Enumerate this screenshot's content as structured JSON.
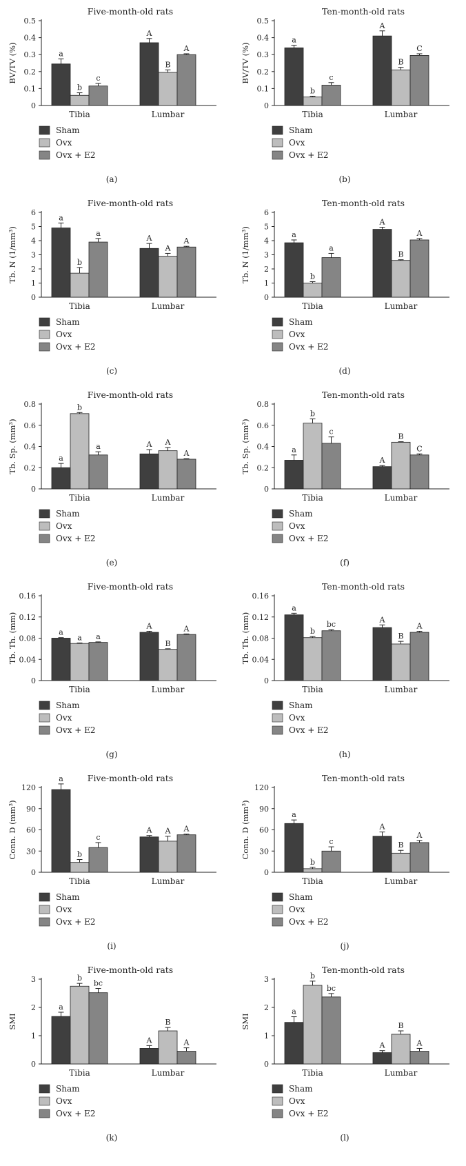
{
  "figure": {
    "groups": [
      "Tibia",
      "Lumbar"
    ],
    "series_names": [
      "Sham",
      "Ovx",
      "Ovx + E2"
    ],
    "colors": {
      "Sham": "#3f3f3f",
      "Ovx": "#bdbdbd",
      "Ovx + E2": "#858585"
    }
  },
  "chart_data": [
    {
      "type": "bar",
      "label": "(a)",
      "title": "Five-month-old rats",
      "ylabel": "BV/TV (%)",
      "ylim": [
        0,
        0.5
      ],
      "yticks": [
        "0",
        "0.1",
        "0.2",
        "0.3",
        "0.4",
        "0.5"
      ],
      "categories": [
        "Tibia",
        "Lumbar"
      ],
      "series": [
        {
          "name": "Sham",
          "values": [
            0.245,
            0.37
          ],
          "errors": [
            0.03,
            0.025
          ],
          "letters": [
            "a",
            "A"
          ]
        },
        {
          "name": "Ovx",
          "values": [
            0.06,
            0.195
          ],
          "errors": [
            0.015,
            0.015
          ],
          "letters": [
            "b",
            "B"
          ]
        },
        {
          "name": "Ovx + E2",
          "values": [
            0.115,
            0.3
          ],
          "errors": [
            0.015,
            0.005
          ],
          "letters": [
            "c",
            "A"
          ]
        }
      ]
    },
    {
      "type": "bar",
      "label": "(b)",
      "title": "Ten-month-old rats",
      "ylabel": "BV/TV (%)",
      "ylim": [
        0,
        0.5
      ],
      "yticks": [
        "0",
        "0.1",
        "0.2",
        "0.3",
        "0.4",
        "0.5"
      ],
      "categories": [
        "Tibia",
        "Lumbar"
      ],
      "series": [
        {
          "name": "Sham",
          "values": [
            0.34,
            0.41
          ],
          "errors": [
            0.015,
            0.03
          ],
          "letters": [
            "a",
            "A"
          ]
        },
        {
          "name": "Ovx",
          "values": [
            0.05,
            0.21
          ],
          "errors": [
            0.005,
            0.015
          ],
          "letters": [
            "b",
            "B"
          ]
        },
        {
          "name": "Ovx + E2",
          "values": [
            0.12,
            0.295
          ],
          "errors": [
            0.015,
            0.01
          ],
          "letters": [
            "c",
            "C"
          ]
        }
      ]
    },
    {
      "type": "bar",
      "label": "(c)",
      "title": "Five-month-old rats",
      "ylabel": "Tb. N (1/mm³)",
      "ylim": [
        0,
        6
      ],
      "yticks": [
        "0",
        "1",
        "2",
        "3",
        "4",
        "5",
        "6"
      ],
      "categories": [
        "Tibia",
        "Lumbar"
      ],
      "series": [
        {
          "name": "Sham",
          "values": [
            4.9,
            3.45
          ],
          "errors": [
            0.35,
            0.35
          ],
          "letters": [
            "a",
            "A"
          ]
        },
        {
          "name": "Ovx",
          "values": [
            1.7,
            2.9
          ],
          "errors": [
            0.4,
            0.2
          ],
          "letters": [
            "b",
            "A"
          ]
        },
        {
          "name": "Ovx + E2",
          "values": [
            3.9,
            3.55
          ],
          "errors": [
            0.25,
            0.05
          ],
          "letters": [
            "a",
            "A"
          ]
        }
      ]
    },
    {
      "type": "bar",
      "label": "(d)",
      "title": "Ten-month-old rats",
      "ylabel": "Tb. N (1/mm³)",
      "ylim": [
        0,
        6
      ],
      "yticks": [
        "0",
        "1",
        "2",
        "3",
        "4",
        "5",
        "6"
      ],
      "categories": [
        "Tibia",
        "Lumbar"
      ],
      "series": [
        {
          "name": "Sham",
          "values": [
            3.85,
            4.8
          ],
          "errors": [
            0.2,
            0.15
          ],
          "letters": [
            "a",
            "A"
          ]
        },
        {
          "name": "Ovx",
          "values": [
            1.0,
            2.6
          ],
          "errors": [
            0.1,
            0.05
          ],
          "letters": [
            "b",
            "B"
          ]
        },
        {
          "name": "Ovx + E2",
          "values": [
            2.8,
            4.05
          ],
          "errors": [
            0.3,
            0.1
          ],
          "letters": [
            "a",
            "A"
          ]
        }
      ]
    },
    {
      "type": "bar",
      "label": "(e)",
      "title": "Five-month-old rats",
      "ylabel": "Tb. Sp. (mm³)",
      "ylim": [
        0,
        0.8
      ],
      "yticks": [
        "0",
        "0.2",
        "0.4",
        "0.6",
        "0.8"
      ],
      "categories": [
        "Tibia",
        "Lumbar"
      ],
      "series": [
        {
          "name": "Sham",
          "values": [
            0.2,
            0.33
          ],
          "errors": [
            0.04,
            0.04
          ],
          "letters": [
            "a",
            "A"
          ]
        },
        {
          "name": "Ovx",
          "values": [
            0.71,
            0.36
          ],
          "errors": [
            0.01,
            0.03
          ],
          "letters": [
            "b",
            "A"
          ]
        },
        {
          "name": "Ovx + E2",
          "values": [
            0.32,
            0.28
          ],
          "errors": [
            0.03,
            0.005
          ],
          "letters": [
            "a",
            "A"
          ]
        }
      ]
    },
    {
      "type": "bar",
      "label": "(f)",
      "title": "Ten-month-old rats",
      "ylabel": "Tb. Sp. (mm³)",
      "ylim": [
        0,
        0.8
      ],
      "yticks": [
        "0",
        "0.2",
        "0.4",
        "0.6",
        "0.8"
      ],
      "categories": [
        "Tibia",
        "Lumbar"
      ],
      "series": [
        {
          "name": "Sham",
          "values": [
            0.27,
            0.21
          ],
          "errors": [
            0.05,
            0.01
          ],
          "letters": [
            "a",
            "A"
          ]
        },
        {
          "name": "Ovx",
          "values": [
            0.62,
            0.44
          ],
          "errors": [
            0.04,
            0.005
          ],
          "letters": [
            "b",
            "B"
          ]
        },
        {
          "name": "Ovx + E2",
          "values": [
            0.43,
            0.32
          ],
          "errors": [
            0.06,
            0.01
          ],
          "letters": [
            "c",
            "C"
          ]
        }
      ]
    },
    {
      "type": "bar",
      "label": "(g)",
      "title": "Five-month-old rats",
      "ylabel": "Tb. Th. (mm)",
      "ylim": [
        0,
        0.16
      ],
      "yticks": [
        "0",
        "0.04",
        "0.08",
        "0.12",
        "0.16"
      ],
      "categories": [
        "Tibia",
        "Lumbar"
      ],
      "series": [
        {
          "name": "Sham",
          "values": [
            0.08,
            0.091
          ],
          "errors": [
            0.001,
            0.002
          ],
          "letters": [
            "a",
            "A"
          ]
        },
        {
          "name": "Ovx",
          "values": [
            0.07,
            0.059
          ],
          "errors": [
            0.001,
            0.001
          ],
          "letters": [
            "a",
            "B"
          ]
        },
        {
          "name": "Ovx + E2",
          "values": [
            0.072,
            0.087
          ],
          "errors": [
            0.001,
            0.001
          ],
          "letters": [
            "a",
            "A"
          ]
        }
      ]
    },
    {
      "type": "bar",
      "label": "(h)",
      "title": "Ten-month-old rats",
      "ylabel": "Tb. Th. (mm)",
      "ylim": [
        0,
        0.16
      ],
      "yticks": [
        "0",
        "0.04",
        "0.08",
        "0.12",
        "0.16"
      ],
      "categories": [
        "Tibia",
        "Lumbar"
      ],
      "series": [
        {
          "name": "Sham",
          "values": [
            0.124,
            0.1
          ],
          "errors": [
            0.003,
            0.005
          ],
          "letters": [
            "a",
            "A"
          ]
        },
        {
          "name": "Ovx",
          "values": [
            0.081,
            0.069
          ],
          "errors": [
            0.002,
            0.005
          ],
          "letters": [
            "b",
            "B"
          ]
        },
        {
          "name": "Ovx + E2",
          "values": [
            0.094,
            0.091
          ],
          "errors": [
            0.002,
            0.002
          ],
          "letters": [
            "bc",
            "A"
          ]
        }
      ]
    },
    {
      "type": "bar",
      "label": "(i)",
      "title": "Five-month-old rats",
      "ylabel": "Conn. D (mm³)",
      "ylim": [
        0,
        120
      ],
      "yticks": [
        "0",
        "30",
        "60",
        "90",
        "120"
      ],
      "categories": [
        "Tibia",
        "Lumbar"
      ],
      "series": [
        {
          "name": "Sham",
          "values": [
            117,
            50
          ],
          "errors": [
            8,
            2
          ],
          "letters": [
            "a",
            "A"
          ]
        },
        {
          "name": "Ovx",
          "values": [
            14,
            44
          ],
          "errors": [
            4,
            7
          ],
          "letters": [
            "b",
            "A"
          ]
        },
        {
          "name": "Ovx + E2",
          "values": [
            35,
            53
          ],
          "errors": [
            7,
            1
          ],
          "letters": [
            "c",
            "A"
          ]
        }
      ]
    },
    {
      "type": "bar",
      "label": "(j)",
      "title": "Ten-month-old rats",
      "ylabel": "Conn. D (mm³)",
      "ylim": [
        0,
        120
      ],
      "yticks": [
        "0",
        "30",
        "60",
        "90",
        "120"
      ],
      "categories": [
        "Tibia",
        "Lumbar"
      ],
      "series": [
        {
          "name": "Sham",
          "values": [
            69,
            51
          ],
          "errors": [
            5,
            6
          ],
          "letters": [
            "a",
            "A"
          ]
        },
        {
          "name": "Ovx",
          "values": [
            5,
            27
          ],
          "errors": [
            2,
            4
          ],
          "letters": [
            "b",
            "B"
          ]
        },
        {
          "name": "Ovx + E2",
          "values": [
            30,
            42
          ],
          "errors": [
            6,
            3
          ],
          "letters": [
            "c",
            "A"
          ]
        }
      ]
    },
    {
      "type": "bar",
      "label": "(k)",
      "title": "Five-month-old rats",
      "ylabel": "SMI",
      "ylim": [
        0,
        3
      ],
      "yticks": [
        "0",
        "1",
        "2",
        "3"
      ],
      "categories": [
        "Tibia",
        "Lumbar"
      ],
      "series": [
        {
          "name": "Sham",
          "values": [
            1.68,
            0.55
          ],
          "errors": [
            0.15,
            0.1
          ],
          "letters": [
            "a",
            "A"
          ]
        },
        {
          "name": "Ovx",
          "values": [
            2.75,
            1.17
          ],
          "errors": [
            0.1,
            0.12
          ],
          "letters": [
            "b",
            "B"
          ]
        },
        {
          "name": "Ovx + E2",
          "values": [
            2.52,
            0.45
          ],
          "errors": [
            0.15,
            0.12
          ],
          "letters": [
            "bc",
            "A"
          ]
        }
      ]
    },
    {
      "type": "bar",
      "label": "(l)",
      "title": "Ten-month-old rats",
      "ylabel": "SMI",
      "ylim": [
        0,
        3
      ],
      "yticks": [
        "0",
        "1",
        "2",
        "3"
      ],
      "categories": [
        "Tibia",
        "Lumbar"
      ],
      "series": [
        {
          "name": "Sham",
          "values": [
            1.47,
            0.4
          ],
          "errors": [
            0.2,
            0.07
          ],
          "letters": [
            "a",
            "A"
          ]
        },
        {
          "name": "Ovx",
          "values": [
            2.78,
            1.05
          ],
          "errors": [
            0.15,
            0.12
          ],
          "letters": [
            "b",
            "B"
          ]
        },
        {
          "name": "Ovx + E2",
          "values": [
            2.37,
            0.45
          ],
          "errors": [
            0.12,
            0.1
          ],
          "letters": [
            "bc",
            "A"
          ]
        }
      ]
    }
  ]
}
